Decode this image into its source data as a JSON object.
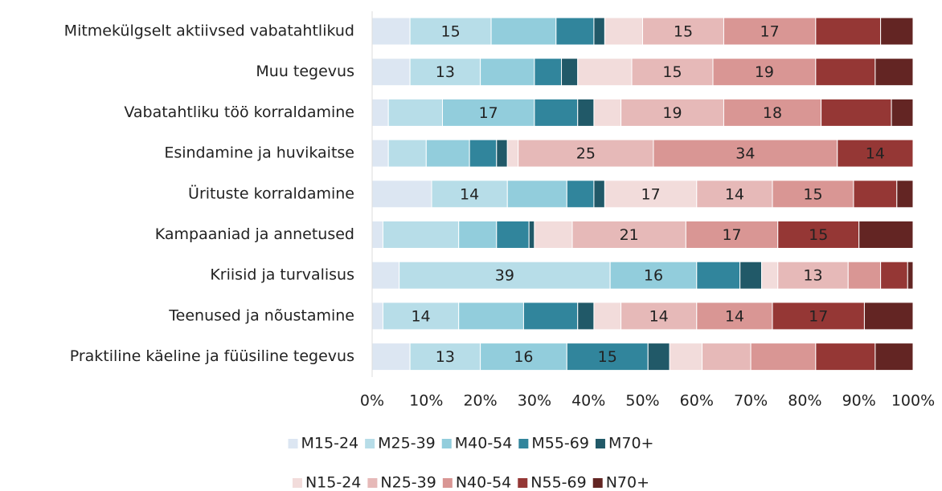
{
  "chart_data": {
    "type": "stacked_barh",
    "categories": [
      "Mitmekülgselt aktiivsed vabatahtlikud",
      "Muu tegevus",
      "Vabatahtliku töö korraldamine",
      "Esindamine ja huvikaitse",
      "Ürituste korraldamine",
      "Kampaaniad ja annetused",
      "Kriisid ja turvalisus",
      "Teenused ja nõustamine",
      "Praktiline käeline ja füüsiline tegevus"
    ],
    "series": [
      {
        "name": "M15-24",
        "color": "#dce6f2",
        "values": [
          7,
          7,
          3,
          3,
          11,
          2,
          5,
          2,
          7
        ],
        "value_labels": [
          null,
          null,
          null,
          null,
          null,
          null,
          null,
          null,
          null
        ]
      },
      {
        "name": "M25-39",
        "color": "#b7dde8",
        "values": [
          15,
          13,
          10,
          7,
          14,
          14,
          39,
          14,
          13
        ],
        "value_labels": [
          15,
          13,
          null,
          null,
          14,
          null,
          39,
          14,
          13
        ]
      },
      {
        "name": "M40-54",
        "color": "#92cddc",
        "values": [
          12,
          10,
          17,
          8,
          11,
          7,
          16,
          12,
          16
        ],
        "value_labels": [
          null,
          null,
          17,
          null,
          null,
          null,
          16,
          null,
          16
        ]
      },
      {
        "name": "M55-69",
        "color": "#31859c",
        "values": [
          7,
          5,
          8,
          5,
          5,
          6,
          8,
          10,
          15
        ],
        "value_labels": [
          null,
          null,
          null,
          null,
          null,
          null,
          null,
          null,
          15
        ]
      },
      {
        "name": "M70+",
        "color": "#215968",
        "values": [
          2,
          3,
          3,
          2,
          2,
          1,
          4,
          3,
          4
        ],
        "value_labels": [
          null,
          null,
          null,
          null,
          null,
          null,
          null,
          null,
          null
        ]
      },
      {
        "name": "N15-24",
        "color": "#f2dcdb",
        "values": [
          7,
          10,
          5,
          2,
          17,
          7,
          3,
          5,
          6
        ],
        "value_labels": [
          null,
          null,
          null,
          null,
          17,
          null,
          null,
          null,
          null
        ]
      },
      {
        "name": "N25-39",
        "color": "#e6b9b8",
        "values": [
          15,
          15,
          19,
          25,
          14,
          21,
          13,
          14,
          9
        ],
        "value_labels": [
          15,
          15,
          19,
          25,
          14,
          21,
          13,
          14,
          null
        ]
      },
      {
        "name": "N40-54",
        "color": "#d99694",
        "values": [
          17,
          19,
          18,
          34,
          15,
          17,
          6,
          14,
          12
        ],
        "value_labels": [
          17,
          19,
          18,
          34,
          15,
          17,
          null,
          14,
          null
        ]
      },
      {
        "name": "N55-69",
        "color": "#953735",
        "values": [
          12,
          11,
          13,
          14,
          8,
          15,
          5,
          17,
          11
        ],
        "value_labels": [
          null,
          null,
          null,
          14,
          null,
          15,
          null,
          17,
          null
        ]
      },
      {
        "name": "N70+",
        "color": "#632523",
        "values": [
          6,
          7,
          4,
          0,
          3,
          10,
          1,
          9,
          7
        ],
        "value_labels": [
          null,
          null,
          null,
          null,
          null,
          null,
          null,
          null,
          null
        ]
      }
    ],
    "xlim": [
      0,
      100
    ],
    "xticks": [
      {
        "value": 0,
        "label": "0%"
      },
      {
        "value": 10,
        "label": "10%"
      },
      {
        "value": 20,
        "label": "20%"
      },
      {
        "value": 30,
        "label": "30%"
      },
      {
        "value": 40,
        "label": "40%"
      },
      {
        "value": 50,
        "label": "50%"
      },
      {
        "value": 60,
        "label": "60%"
      },
      {
        "value": 70,
        "label": "70%"
      },
      {
        "value": 80,
        "label": "80%"
      },
      {
        "value": 90,
        "label": "90%"
      },
      {
        "value": 100,
        "label": "100%"
      }
    ],
    "grid": false,
    "legend": "bottom"
  }
}
